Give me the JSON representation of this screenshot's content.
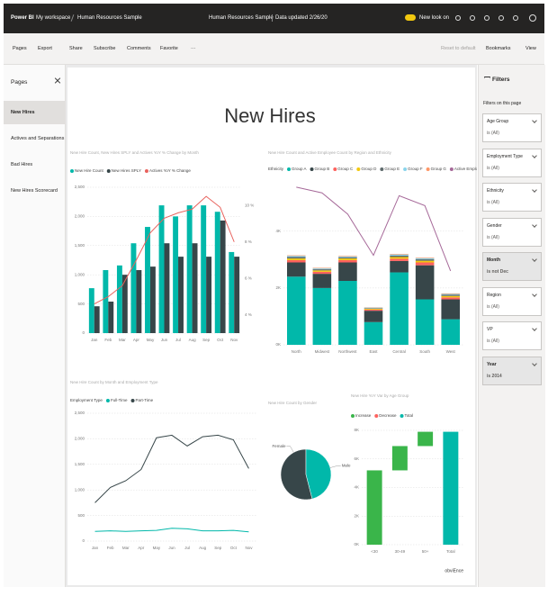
{
  "header": {
    "app": "Power BI",
    "breadcrumb": [
      "My workspace",
      "Human Resources Sample"
    ],
    "report": "Human Resources Sample",
    "updated": "Data updated 2/26/20",
    "toggle": "New look on"
  },
  "toolbar": {
    "left": [
      "Pages",
      "Export",
      "Share",
      "Subscribe",
      "Comments",
      "Favorite",
      "···"
    ],
    "right": [
      "Reset to default",
      "Bookmarks",
      "View"
    ]
  },
  "pages": {
    "title": "Pages",
    "items": [
      "New Hires",
      "Actives and Separations",
      "Bad Hires",
      "New Hires Scorecard"
    ]
  },
  "filters": {
    "title": "Filters",
    "subtitle": "Filters on this page",
    "cards": [
      {
        "field": "Age Group",
        "condition": "is (All)"
      },
      {
        "field": "Employment Type",
        "condition": "is (All)"
      },
      {
        "field": "Ethnicity",
        "condition": "is (All)"
      },
      {
        "field": "Gender",
        "condition": "is (All)"
      },
      {
        "field": "Month",
        "condition": "is not Dec",
        "applied": true
      },
      {
        "field": "Region",
        "condition": "is (All)"
      },
      {
        "field": "VP",
        "condition": "is (All)"
      },
      {
        "field": "Year",
        "condition": "is 2014",
        "applied": true
      }
    ]
  },
  "report": {
    "title": "New Hires",
    "footer": "obviEnce"
  },
  "chart_data": [
    {
      "type": "combo",
      "stacked": false,
      "grid": true,
      "title": "New Hire Count, New Hires SPLY and Actives YoY % Change by Month",
      "categories": [
        "Jan",
        "Feb",
        "Mar",
        "Apr",
        "May",
        "Jun",
        "Jul",
        "Aug",
        "Sep",
        "Oct",
        "Nov"
      ],
      "series": [
        {
          "name": "New Hire Count",
          "color": "#01b8aa",
          "values": [
            770,
            1080,
            1160,
            1540,
            1820,
            2190,
            2000,
            2190,
            2190,
            2080,
            1390
          ]
        },
        {
          "name": "New Hires SPLY",
          "color": "#374649",
          "values": [
            460,
            540,
            1000,
            1080,
            1140,
            1540,
            1310,
            1540,
            1310,
            1930,
            1310
          ]
        },
        {
          "name": "Actives YoY % Change",
          "color": "#e8625d",
          "type": "line",
          "axis": "y2",
          "values": [
            4.6,
            5.0,
            5.6,
            7.0,
            8.5,
            9.3,
            9.6,
            9.8,
            10.5,
            9.9,
            8.0
          ]
        }
      ],
      "ylim": [
        0,
        2500
      ],
      "yticks": [
        0,
        500,
        {
          "value": 1000,
          "label": "1,000"
        },
        {
          "value": 1500,
          "label": "1,500"
        },
        {
          "value": 2000,
          "label": "2,000"
        },
        {
          "value": 2500,
          "label": "2,500"
        }
      ],
      "y2lim": [
        3,
        11
      ],
      "y2ticks": [
        {
          "value": 4,
          "label": "4 %"
        },
        {
          "value": 6,
          "label": "6 %"
        },
        {
          "value": 8,
          "label": "8 %"
        },
        {
          "value": 10,
          "label": "10 %"
        }
      ]
    },
    {
      "type": "combo",
      "stacked": true,
      "grid": true,
      "title": "New Hire Count and Active Employee Count by Region and Ethnicity",
      "legend_title": "Ethnicity",
      "categories": [
        "North",
        "Midwest",
        "Northwest",
        "East",
        "Central",
        "South",
        "West"
      ],
      "series": [
        {
          "name": "Group A",
          "color": "#01b8aa",
          "values": [
            2.4,
            2.0,
            2.25,
            0.8,
            2.55,
            1.6,
            0.9
          ]
        },
        {
          "name": "Group B",
          "color": "#374649",
          "values": [
            0.5,
            0.5,
            0.65,
            0.4,
            0.4,
            1.2,
            0.7
          ]
        },
        {
          "name": "Group C",
          "color": "#fd625e",
          "values": [
            0.08,
            0.07,
            0.08,
            0.04,
            0.08,
            0.1,
            0.07
          ]
        },
        {
          "name": "Group D",
          "color": "#f2c80f",
          "values": [
            0.06,
            0.05,
            0.06,
            0.03,
            0.06,
            0.06,
            0.05
          ]
        },
        {
          "name": "Group E",
          "color": "#5f6b6d",
          "values": [
            0.05,
            0.04,
            0.04,
            0.02,
            0.05,
            0.05,
            0.04
          ]
        },
        {
          "name": "Group F",
          "color": "#8ad4eb",
          "values": [
            0.04,
            0.03,
            0.03,
            0.02,
            0.04,
            0.04,
            0.03
          ]
        },
        {
          "name": "Group G",
          "color": "#fe9666",
          "values": [
            0.02,
            0.02,
            0.02,
            0.01,
            0.02,
            0.02,
            0.02
          ]
        },
        {
          "name": "Active Employee Count",
          "color": "#a66999",
          "type": "line",
          "values": [
            5.55,
            5.35,
            4.6,
            3.15,
            5.25,
            4.9,
            2.6
          ]
        }
      ],
      "ylim": [
        0,
        5.8
      ],
      "yticks": [
        {
          "value": 0,
          "label": "0K"
        },
        {
          "value": 2,
          "label": "2K"
        },
        {
          "value": 4,
          "label": "4K"
        }
      ]
    },
    {
      "type": "line",
      "grid": true,
      "title": "New Hire Count by Month and Employment Type",
      "legend_title": "Employment Type",
      "categories": [
        "Jan",
        "Feb",
        "Mar",
        "Apr",
        "May",
        "Jun",
        "Jul",
        "Aug",
        "Sep",
        "Oct",
        "Nov"
      ],
      "series": [
        {
          "name": "Full-Time",
          "color": "#01b8aa",
          "values": [
            190,
            200,
            190,
            200,
            210,
            250,
            240,
            200,
            200,
            210,
            180
          ]
        },
        {
          "name": "Part-Time",
          "color": "#374649",
          "values": [
            750,
            1050,
            1180,
            1400,
            2020,
            2070,
            1860,
            2040,
            2070,
            1980,
            1420
          ]
        }
      ],
      "ylim": [
        0,
        2500
      ],
      "yticks": [
        0,
        500,
        {
          "value": 1000,
          "label": "1,000"
        },
        {
          "value": 1500,
          "label": "1,500"
        },
        {
          "value": 2000,
          "label": "2,000"
        },
        {
          "value": 2500,
          "label": "2,500"
        }
      ]
    },
    {
      "type": "pie",
      "title": "New Hire Count by Gender",
      "categories": [
        "Female",
        "Male"
      ],
      "values": [
        54,
        46
      ],
      "colors": [
        "#374649",
        "#01b8aa"
      ]
    },
    {
      "type": "waterfall",
      "grid": true,
      "title": "New Hire YoY Var by Age Group",
      "legend": [
        {
          "name": "Increase",
          "color": "#3ab54a"
        },
        {
          "name": "Decrease",
          "color": "#fd625e"
        },
        {
          "name": "Total",
          "color": "#01b8aa"
        }
      ],
      "categories": [
        "<30",
        "30-49",
        "50+",
        "Total"
      ],
      "values": [
        5.2,
        1.7,
        1.0,
        7.9
      ],
      "ylim": [
        0,
        8
      ],
      "yticks": [
        {
          "value": 0,
          "label": "0K"
        },
        {
          "value": 2,
          "label": "2K"
        },
        {
          "value": 4,
          "label": "4K"
        },
        {
          "value": 6,
          "label": "6K"
        },
        {
          "value": 8,
          "label": "8K"
        }
      ]
    }
  ]
}
